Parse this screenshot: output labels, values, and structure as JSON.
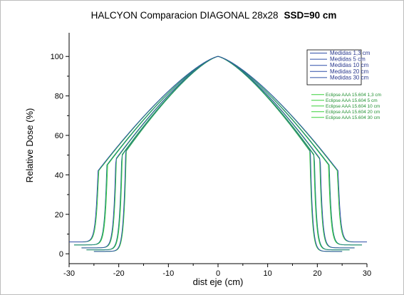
{
  "chart_data": {
    "type": "line",
    "title": "HALCYON Comparacion DIAGONAL 28x28",
    "title_bold_part": "SSD=90 cm",
    "xlabel": "dist eje (cm)",
    "ylabel": "Relative Dose (%)",
    "xlim": [
      -30,
      30
    ],
    "ylim": [
      -5,
      112
    ],
    "xticks": [
      -30,
      -20,
      -10,
      0,
      10,
      20,
      30
    ],
    "yticks": [
      0,
      20,
      40,
      60,
      80,
      100
    ],
    "grid": false,
    "legend_placement": "right",
    "colors": {
      "measured": "#2f4fa8",
      "measured_alt": "#1f7f7f",
      "calculated": "#39d13a"
    },
    "legend_groups": [
      {
        "style": "measured",
        "entries": [
          "Medidas 1,3 cm",
          "Medidas 5 cm",
          "Medidas 10 cm",
          "Medidas 20 cm",
          "Medidas 30 cm"
        ]
      },
      {
        "style": "calculated",
        "entries": [
          "Eclipse AAA 15.604 1,3 cm",
          "Eclipse AAA 15.604 5 cm",
          "Eclipse AAA 15.604 10 cm",
          "Eclipse AAA 15.604 20 cm",
          "Eclipse AAA 15.604 30 cm"
        ]
      }
    ],
    "profile_depths": [
      {
        "edge": 18.6,
        "tail": 1.2,
        "shoulder": 52,
        "extent": 25.0
      },
      {
        "edge": 19.4,
        "tail": 2.0,
        "shoulder": 50,
        "extent": 26.5
      },
      {
        "edge": 20.6,
        "tail": 3.0,
        "shoulder": 48,
        "extent": 27.5
      },
      {
        "edge": 22.4,
        "tail": 4.5,
        "shoulder": 45,
        "extent": 29.0
      },
      {
        "edge": 24.2,
        "tail": 6.0,
        "shoulder": 42,
        "extent": 30.0
      }
    ]
  }
}
